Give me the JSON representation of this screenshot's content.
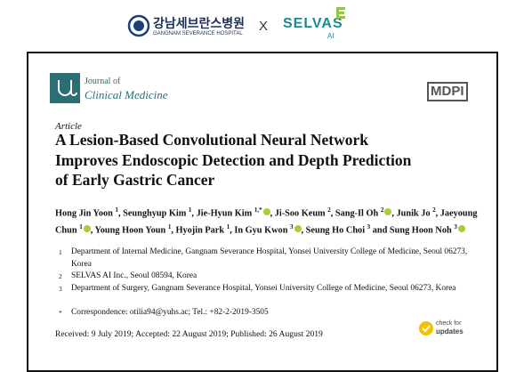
{
  "header": {
    "hospital_korean": "강남세브란스병원",
    "hospital_english": "GANGNAM SEVERANCE HOSPITAL",
    "separator": "X",
    "partner": "SELVAS",
    "partner_sub": "AI"
  },
  "journal": {
    "line1": "Journal of",
    "line2": "Clinical Medicine",
    "publisher": "MDPI"
  },
  "article_type": "Article",
  "title_lines": [
    "A Lesion-Based Convolutional Neural Network",
    "Improves Endoscopic Detection and Depth Prediction",
    "of Early Gastric Cancer"
  ],
  "authors": [
    {
      "name": "Hong Jin Yoon",
      "sup": "1",
      "after": ", "
    },
    {
      "name": "Seunghyup Kim",
      "sup": "1",
      "after": ", "
    },
    {
      "name": "Jie-Hyun Kim",
      "sup": "1,*",
      "orcid": true,
      "after": ", "
    },
    {
      "name": "Ji-Soo Keum",
      "sup": "2",
      "after": ", "
    },
    {
      "name": "Sang-Il Oh",
      "sup": "2",
      "orcid": true,
      "after": ", "
    },
    {
      "name": "Junik Jo",
      "sup": "2",
      "after": ", "
    },
    {
      "name": "Jaeyoung Chun",
      "sup": "1",
      "orcid": true,
      "after": ", "
    },
    {
      "name": "Young Hoon Youn",
      "sup": "1",
      "after": ", "
    },
    {
      "name": "Hyojin Park",
      "sup": "1",
      "after": ", "
    },
    {
      "name": "In Gyu Kwon",
      "sup": "3",
      "orcid": true,
      "after": ", "
    },
    {
      "name": "Seung Ho Choi",
      "sup": "3",
      "after": " and "
    },
    {
      "name": "Sung Hoon Noh",
      "sup": "3",
      "orcid": true
    }
  ],
  "affiliations": [
    {
      "num": "1",
      "text": "Department of Internal Medicine, Gangnam Severance Hospital, Yonsei University College of Medicine, Seoul 06273, Korea"
    },
    {
      "num": "2",
      "text": "SELVAS AI Inc., Seoul 08594, Korea"
    },
    {
      "num": "3",
      "text": "Department of Surgery, Gangnam Severance Hospital, Yonsei University College of Medicine, Seoul 06273, Korea"
    },
    {
      "num": "*",
      "text": "Correspondence: otilia94@yuhs.ac; Tel.: +82-2-2019-3505"
    }
  ],
  "dates": "Received: 9 July 2019; Accepted: 22 August 2019; Published: 26 August 2019",
  "updates": {
    "line1": "check for",
    "line2": "updates"
  }
}
